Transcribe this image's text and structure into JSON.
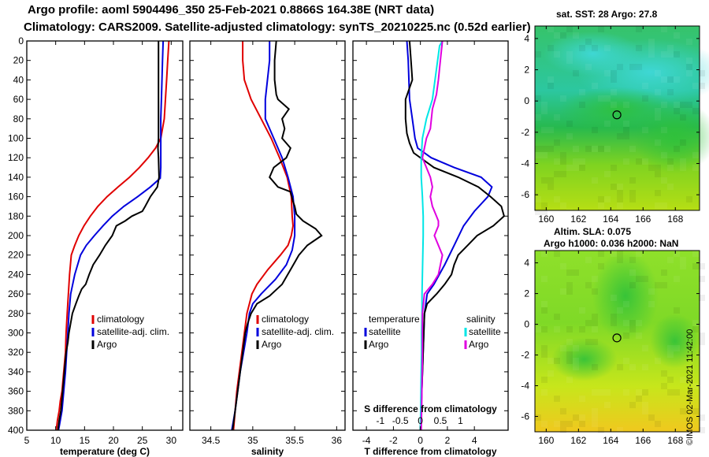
{
  "header": {
    "line1": "Argo profile: aoml 5904496_350 25-Feb-2021 0.8866S 164.38E (NRT data)",
    "line2": "Climatology: CARS2009. Satellite-adjusted climatology: synTS_20210225.nc (0.52d earlier)"
  },
  "colors": {
    "climatology": "#e00000",
    "satellite": "#0000dd",
    "argo": "#000000",
    "sat_t": "#00e6e6",
    "sat_s_argo": "#e000e0"
  },
  "maps": {
    "sst_title": "sat. SST: 28 Argo: 27.8",
    "sla_title1": "Altim. SLA: 0.075",
    "sla_title2": "Argo h1000: 0.036 h2000: NaN"
  },
  "credit": "©IMOS 02-Mar-2021 11:42:00",
  "chart_data": [
    {
      "type": "line",
      "name": "temperature",
      "xlabel": "temperature (deg C)",
      "ylabel": "",
      "xlim": [
        5,
        32
      ],
      "ylim": [
        400,
        0
      ],
      "xticks": [
        5,
        10,
        15,
        20,
        25,
        30
      ],
      "yticks": [
        0,
        20,
        40,
        60,
        80,
        100,
        120,
        140,
        160,
        180,
        200,
        220,
        240,
        260,
        280,
        300,
        320,
        340,
        360,
        380,
        400
      ],
      "legend": [
        "climatology",
        "satellite-adj. clim.",
        "Argo"
      ],
      "series": [
        {
          "name": "climatology",
          "x": [
            29.6,
            29.4,
            29.2,
            29.0,
            28.8,
            28.2,
            27.3,
            26.0,
            24.5,
            22.8,
            20.8,
            18.9,
            17.3,
            16.0,
            14.9,
            14.0,
            13.3,
            12.7,
            12.4,
            12.2,
            12.0,
            11.8,
            11.7,
            11.4,
            11.1,
            10.8,
            10.6,
            10.3,
            10.1
          ],
          "y": [
            0,
            20,
            40,
            60,
            80,
            100,
            110,
            120,
            130,
            140,
            150,
            160,
            170,
            180,
            190,
            200,
            210,
            220,
            240,
            260,
            280,
            300,
            320,
            340,
            360,
            370,
            380,
            390,
            400
          ]
        },
        {
          "name": "satellite-adj. clim.",
          "x": [
            28.6,
            28.5,
            28.4,
            28.3,
            28.2,
            28.2,
            28.2,
            28.2,
            28.2,
            28.1,
            26.4,
            24.2,
            21.8,
            19.8,
            18.2,
            16.7,
            15.3,
            14.3,
            13.3,
            12.6,
            12.3,
            12.1,
            11.9,
            11.7,
            11.4,
            11.1,
            10.8,
            10.5
          ],
          "y": [
            0,
            20,
            40,
            60,
            80,
            100,
            110,
            120,
            130,
            141,
            150,
            160,
            170,
            180,
            190,
            200,
            210,
            220,
            240,
            260,
            280,
            300,
            320,
            340,
            360,
            380,
            390,
            400
          ]
        },
        {
          "name": "Argo",
          "x": [
            27.8,
            27.8,
            27.8,
            27.8,
            27.8,
            27.8,
            27.7,
            27.8,
            27.9,
            27.6,
            26.4,
            25.5,
            25.0,
            23.2,
            22.0,
            20.5,
            19.8,
            18.6,
            17.6,
            16.5,
            15.8,
            15.2,
            14.5,
            14.0,
            13.5,
            12.9,
            12.6,
            12.3,
            12.1,
            11.8,
            11.5,
            11.2,
            10.9,
            10.6,
            10.4
          ],
          "y": [
            0,
            20,
            40,
            60,
            80,
            100,
            110,
            120,
            140,
            150,
            160,
            170,
            175,
            180,
            185,
            190,
            200,
            210,
            220,
            230,
            240,
            250,
            255,
            262,
            270,
            280,
            290,
            300,
            310,
            320,
            340,
            360,
            380,
            390,
            400
          ]
        }
      ]
    },
    {
      "type": "line",
      "name": "salinity",
      "xlabel": "salinity",
      "xlim": [
        34.25,
        36.1
      ],
      "ylim": [
        400,
        0
      ],
      "xticks": [
        34.5,
        35,
        35.5,
        36
      ],
      "legend": [
        "climatology",
        "satellite-adj. clim.",
        "Argo"
      ],
      "series": [
        {
          "name": "climatology",
          "x": [
            34.88,
            34.88,
            34.9,
            34.98,
            35.1,
            35.22,
            35.32,
            35.41,
            35.46,
            35.47,
            35.48,
            35.46,
            35.42,
            35.33,
            35.18,
            35.05,
            34.99,
            34.96,
            34.93,
            34.9,
            34.87,
            34.84,
            34.81,
            34.79,
            34.77
          ],
          "y": [
            0,
            20,
            40,
            60,
            80,
            100,
            120,
            140,
            160,
            180,
            190,
            200,
            210,
            220,
            235,
            250,
            260,
            270,
            280,
            300,
            320,
            340,
            360,
            380,
            400
          ]
        },
        {
          "name": "satellite-adj. clim.",
          "x": [
            35.2,
            35.2,
            35.2,
            35.15,
            35.15,
            35.25,
            35.35,
            35.42,
            35.48,
            35.5,
            35.5,
            35.47,
            35.4,
            35.27,
            35.1,
            35.0,
            34.96,
            34.93,
            34.89,
            34.85,
            34.82,
            34.79,
            34.77,
            34.75
          ],
          "y": [
            0,
            5,
            20,
            60,
            80,
            100,
            120,
            140,
            160,
            180,
            200,
            215,
            230,
            245,
            260,
            270,
            280,
            300,
            320,
            340,
            360,
            380,
            390,
            400
          ]
        },
        {
          "name": "Argo",
          "x": [
            35.28,
            35.26,
            35.26,
            35.28,
            35.3,
            35.43,
            35.35,
            35.38,
            35.35,
            35.45,
            35.4,
            35.25,
            35.2,
            35.3,
            35.45,
            35.48,
            35.5,
            35.52,
            35.6,
            35.75,
            35.82,
            35.65,
            35.55,
            35.45,
            35.35,
            35.2,
            35.05,
            34.98,
            34.94,
            34.91,
            34.88,
            34.85,
            34.82,
            34.79,
            34.76
          ],
          "y": [
            0,
            20,
            40,
            55,
            60,
            70,
            80,
            90,
            100,
            110,
            120,
            130,
            140,
            150,
            155,
            165,
            170,
            178,
            185,
            193,
            200,
            210,
            220,
            235,
            250,
            262,
            270,
            280,
            290,
            300,
            320,
            340,
            360,
            380,
            400
          ]
        }
      ]
    },
    {
      "type": "line",
      "name": "difference",
      "xlabel": "T difference from climatology",
      "xlabel_top": "S difference from climatology",
      "xlim": [
        -5,
        6.5
      ],
      "ylim": [
        400,
        0
      ],
      "xticks": [
        -4,
        -2,
        0,
        2,
        4
      ],
      "top_xticks": [
        -1,
        -0.5,
        0,
        0.5,
        1
      ],
      "top_xtick_labels": [
        "-1",
        "-0.5",
        "0",
        "0.5",
        "1"
      ],
      "legend_left_title": "temperature",
      "legend_right_title": "salinity",
      "legend_left": [
        "satellite",
        "Argo"
      ],
      "legend_right": [
        "satellite",
        "Argo"
      ],
      "series": [
        {
          "name": "T satellite",
          "x": [
            -1.0,
            -0.9,
            -0.8,
            -0.6,
            -0.4,
            -0.2,
            0.8,
            2.5,
            4.5,
            5.3,
            5.0,
            4.0,
            3.2,
            2.5,
            1.8,
            1.0,
            0.5,
            0.3,
            0.2,
            0.1,
            0.0
          ],
          "y": [
            0,
            20,
            60,
            80,
            100,
            110,
            120,
            130,
            140,
            150,
            160,
            175,
            190,
            210,
            230,
            250,
            260,
            280,
            320,
            360,
            400
          ]
        },
        {
          "name": "T Argo",
          "x": [
            -0.8,
            -0.7,
            -0.6,
            -1.1,
            -1.1,
            -1.0,
            -0.8,
            -0.5,
            1.0,
            2.8,
            4.3,
            5.2,
            6.0,
            6.2,
            5.4,
            4.2,
            3.5,
            2.8,
            2.5,
            2.3,
            1.8,
            1.2,
            0.5,
            0.3,
            0.2,
            0.1,
            0.0
          ],
          "y": [
            0,
            20,
            40,
            60,
            80,
            95,
            105,
            115,
            130,
            140,
            150,
            160,
            170,
            180,
            190,
            200,
            210,
            220,
            230,
            240,
            250,
            260,
            270,
            280,
            320,
            360,
            400
          ]
        },
        {
          "name": "S satellite",
          "x": [
            0.55,
            0.48,
            0.3,
            0.15,
            0.05,
            0.02,
            0.02,
            0.05,
            0.07,
            0.07,
            0.06,
            0.05,
            0.04,
            0.04,
            0.03,
            0.03,
            0.02,
            0.01,
            0.0
          ],
          "y": [
            0,
            5,
            60,
            80,
            100,
            120,
            140,
            160,
            180,
            200,
            220,
            240,
            260,
            280,
            300,
            320,
            340,
            370,
            400
          ]
        },
        {
          "name": "S Argo",
          "x": [
            0.55,
            0.5,
            0.45,
            0.4,
            0.3,
            0.25,
            0.15,
            0.05,
            0.25,
            0.3,
            0.25,
            0.3,
            0.4,
            0.45,
            0.45,
            0.35,
            0.45,
            0.55,
            0.45,
            0.3,
            0.1,
            0.05,
            0.05,
            0.05,
            0.04,
            0.03,
            0.02
          ],
          "y": [
            0,
            20,
            40,
            55,
            70,
            90,
            100,
            120,
            140,
            150,
            160,
            170,
            180,
            185,
            190,
            200,
            210,
            220,
            240,
            250,
            260,
            280,
            300,
            320,
            350,
            380,
            400
          ]
        }
      ]
    }
  ]
}
